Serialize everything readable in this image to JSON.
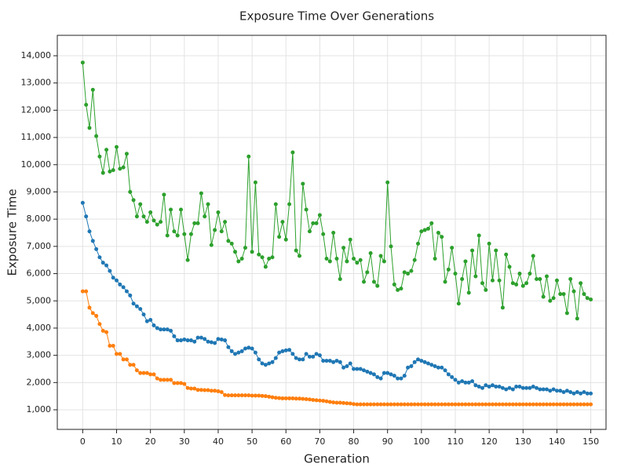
{
  "chart_data": {
    "type": "line",
    "title": "Exposure Time Over Generations",
    "x_label": "Generation",
    "y_label": "Exposure Time",
    "x": [
      0,
      1,
      2,
      3,
      4,
      5,
      6,
      7,
      8,
      9,
      10,
      11,
      12,
      13,
      14,
      15,
      16,
      17,
      18,
      19,
      20,
      21,
      22,
      23,
      24,
      25,
      26,
      27,
      28,
      29,
      30,
      31,
      32,
      33,
      34,
      35,
      36,
      37,
      38,
      39,
      40,
      41,
      42,
      43,
      44,
      45,
      46,
      47,
      48,
      49,
      50,
      51,
      52,
      53,
      54,
      55,
      56,
      57,
      58,
      59,
      60,
      61,
      62,
      63,
      64,
      65,
      66,
      67,
      68,
      69,
      70,
      71,
      72,
      73,
      74,
      75,
      76,
      77,
      78,
      79,
      80,
      81,
      82,
      83,
      84,
      85,
      86,
      87,
      88,
      89,
      90,
      91,
      92,
      93,
      94,
      95,
      96,
      97,
      98,
      99,
      100,
      101,
      102,
      103,
      104,
      105,
      106,
      107,
      108,
      109,
      110,
      111,
      112,
      113,
      114,
      115,
      116,
      117,
      118,
      119,
      120,
      121,
      122,
      123,
      124,
      125,
      126,
      127,
      128,
      129,
      130,
      131,
      132,
      133,
      134,
      135,
      136,
      137,
      138,
      139,
      140,
      141,
      142,
      143,
      144,
      145,
      146,
      147,
      148,
      149,
      150
    ],
    "series": [
      {
        "color": "#1f77b4",
        "values": [
          8600,
          8100,
          7550,
          7200,
          6900,
          6600,
          6400,
          6300,
          6100,
          5850,
          5750,
          5600,
          5500,
          5350,
          5200,
          4900,
          4800,
          4700,
          4500,
          4250,
          4300,
          4100,
          4000,
          3950,
          3950,
          3950,
          3900,
          3700,
          3550,
          3550,
          3580,
          3550,
          3550,
          3500,
          3650,
          3650,
          3600,
          3500,
          3480,
          3450,
          3600,
          3580,
          3550,
          3300,
          3150,
          3050,
          3100,
          3150,
          3250,
          3280,
          3250,
          3100,
          2850,
          2700,
          2650,
          2700,
          2750,
          2900,
          3100,
          3150,
          3180,
          3200,
          3050,
          2900,
          2850,
          2850,
          3050,
          2950,
          2950,
          3050,
          3000,
          2800,
          2800,
          2800,
          2750,
          2800,
          2750,
          2550,
          2600,
          2700,
          2500,
          2500,
          2500,
          2450,
          2400,
          2350,
          2300,
          2200,
          2150,
          2350,
          2350,
          2300,
          2250,
          2150,
          2150,
          2250,
          2550,
          2600,
          2750,
          2850,
          2800,
          2750,
          2700,
          2650,
          2600,
          2550,
          2550,
          2450,
          2300,
          2200,
          2100,
          2000,
          2050,
          2000,
          2000,
          2050,
          1900,
          1850,
          1800,
          1900,
          1850,
          1900,
          1850,
          1850,
          1800,
          1750,
          1800,
          1750,
          1850,
          1850,
          1800,
          1800,
          1800,
          1850,
          1800,
          1750,
          1750,
          1750,
          1700,
          1750,
          1700,
          1700,
          1650,
          1700,
          1650,
          1600,
          1650,
          1600,
          1650,
          1600,
          1600
        ]
      },
      {
        "color": "#ff7f0e",
        "values": [
          5350,
          5350,
          4750,
          4550,
          4450,
          4150,
          3900,
          3850,
          3350,
          3350,
          3050,
          3050,
          2850,
          2850,
          2650,
          2650,
          2450,
          2350,
          2350,
          2350,
          2300,
          2300,
          2150,
          2100,
          2100,
          2100,
          2100,
          1980,
          1980,
          1980,
          1950,
          1800,
          1780,
          1780,
          1730,
          1730,
          1720,
          1720,
          1700,
          1700,
          1680,
          1650,
          1540,
          1530,
          1530,
          1530,
          1530,
          1530,
          1530,
          1530,
          1520,
          1520,
          1520,
          1510,
          1500,
          1480,
          1460,
          1440,
          1430,
          1420,
          1420,
          1420,
          1420,
          1410,
          1410,
          1400,
          1390,
          1380,
          1360,
          1350,
          1340,
          1330,
          1310,
          1290,
          1270,
          1260,
          1260,
          1250,
          1240,
          1230,
          1210,
          1200,
          1200,
          1200,
          1200,
          1200,
          1200,
          1200,
          1200,
          1200,
          1200,
          1200,
          1200,
          1200,
          1200,
          1200,
          1200,
          1200,
          1200,
          1200,
          1200,
          1200,
          1200,
          1200,
          1200,
          1200,
          1200,
          1200,
          1200,
          1200,
          1200,
          1200,
          1200,
          1200,
          1200,
          1200,
          1200,
          1200,
          1200,
          1200,
          1200,
          1200,
          1200,
          1200,
          1200,
          1200,
          1200,
          1200,
          1200,
          1200,
          1200,
          1200,
          1200,
          1200,
          1200,
          1200,
          1200,
          1200,
          1200,
          1200,
          1200,
          1200,
          1200,
          1200,
          1200,
          1200,
          1200,
          1200,
          1200,
          1200,
          1200
        ]
      },
      {
        "color": "#2ca02c",
        "values": [
          13750,
          12200,
          11350,
          12750,
          11050,
          10300,
          9700,
          10550,
          9750,
          9800,
          10650,
          9850,
          9900,
          10400,
          9000,
          8700,
          8100,
          8550,
          8100,
          7900,
          8250,
          7950,
          7800,
          7900,
          8900,
          7400,
          8350,
          7550,
          7400,
          8350,
          7450,
          6500,
          7450,
          7850,
          7850,
          8950,
          8100,
          8550,
          7050,
          7600,
          8250,
          7550,
          7900,
          7200,
          7100,
          6800,
          6450,
          6550,
          6950,
          10300,
          6800,
          9350,
          6700,
          6600,
          6250,
          6550,
          6600,
          8550,
          7350,
          7900,
          7250,
          8550,
          10450,
          6850,
          6650,
          9300,
          8350,
          7550,
          7850,
          7850,
          8150,
          7450,
          6550,
          6450,
          7500,
          6550,
          5800,
          6950,
          6450,
          7250,
          6550,
          6400,
          6500,
          5700,
          6050,
          6750,
          5700,
          5550,
          6650,
          6450,
          9350,
          7000,
          5600,
          5400,
          5450,
          6050,
          6000,
          6100,
          6500,
          7100,
          7550,
          7600,
          7650,
          7850,
          6550,
          7500,
          7350,
          5700,
          6150,
          6950,
          6000,
          4900,
          5800,
          6450,
          5300,
          6850,
          5900,
          7400,
          5650,
          5400,
          7100,
          5750,
          6850,
          5750,
          4750,
          6700,
          6250,
          5650,
          5600,
          6000,
          5550,
          5650,
          6000,
          6650,
          5800,
          5800,
          5150,
          5900,
          5000,
          5100,
          5750,
          5250,
          5250,
          4550,
          5800,
          5350,
          4350,
          5650,
          5250,
          5100,
          5050
        ]
      }
    ],
    "xlim": [
      -7.5,
      154.5
    ],
    "xticks": [
      0,
      10,
      20,
      30,
      40,
      50,
      60,
      70,
      80,
      90,
      100,
      110,
      120,
      130,
      140,
      150
    ],
    "ylim": [
      280,
      14750
    ],
    "yticks": [
      {
        "value": 1000,
        "label": "1,000"
      },
      {
        "value": 2000,
        "label": "2,000"
      },
      {
        "value": 3000,
        "label": "3,000"
      },
      {
        "value": 4000,
        "label": "4,000"
      },
      {
        "value": 5000,
        "label": "5,000"
      },
      {
        "value": 6000,
        "label": "6,000"
      },
      {
        "value": 7000,
        "label": "7,000"
      },
      {
        "value": 8000,
        "label": "8,000"
      },
      {
        "value": 9000,
        "label": "9,000"
      },
      {
        "value": 10000,
        "label": "10,000"
      },
      {
        "value": 11000,
        "label": "11,000"
      },
      {
        "value": 12000,
        "label": "12,000"
      },
      {
        "value": 13000,
        "label": "13,000"
      },
      {
        "value": 14000,
        "label": "14,000"
      }
    ],
    "grid": true
  }
}
